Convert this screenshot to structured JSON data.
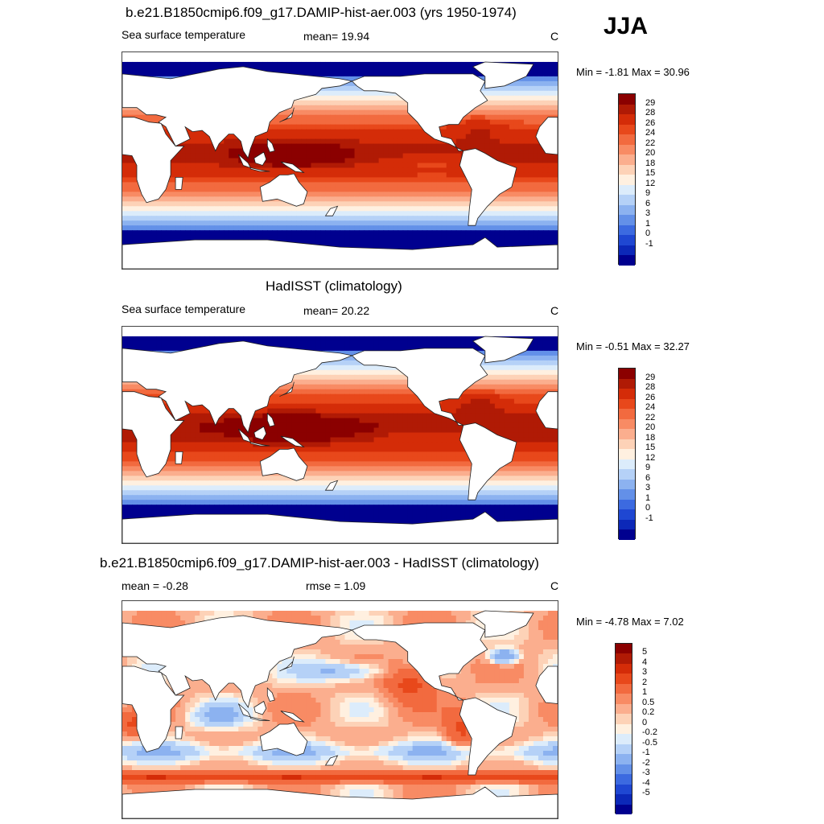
{
  "season": "JJA",
  "panels": [
    {
      "title": "b.e21.B1850cmip6.f09_g17.DAMIP-hist-aer.003 (yrs 1950-1974)",
      "left_label": "Sea surface temperature",
      "center_label": "mean=  19.94",
      "units": "C",
      "minmax": "Min =  -1.81 Max =  30.96",
      "kind": "abs"
    },
    {
      "title": "HadISST (climatology)",
      "left_label": "Sea surface temperature",
      "center_label": "mean=  20.22",
      "units": "C",
      "minmax": "Min =  -0.51 Max =  32.27",
      "kind": "abs"
    },
    {
      "title": "b.e21.B1850cmip6.f09_g17.DAMIP-hist-aer.003 - HadISST (climatology)",
      "left_label": "mean =  -0.28",
      "center_label": "rmse =   1.09",
      "units": "C",
      "minmax": "Min =  -4.78 Max =   7.02",
      "kind": "diff"
    }
  ],
  "colorbars": {
    "abs": {
      "labels": [
        "29",
        "28",
        "26",
        "24",
        "22",
        "20",
        "18",
        "15",
        "12",
        "9",
        "6",
        "3",
        "1",
        "0",
        "-1"
      ],
      "colors": [
        "#8b0000",
        "#b01a05",
        "#d42c08",
        "#e8481b",
        "#f26a3f",
        "#f88b64",
        "#fbae8e",
        "#fdd2b7",
        "#fff0e0",
        "#dcecfb",
        "#b5d1f7",
        "#8cb2f0",
        "#6390e8",
        "#3c6ae0",
        "#1f47d2",
        "#0c28b8",
        "#00008f"
      ]
    },
    "diff": {
      "labels": [
        "5",
        "4",
        "3",
        "2",
        "1",
        "0.5",
        "0.2",
        "0",
        "-0.2",
        "-0.5",
        "-1",
        "-2",
        "-3",
        "-4",
        "-5"
      ],
      "colors": [
        "#8b0000",
        "#b01a05",
        "#d42c08",
        "#e8481b",
        "#f26a3f",
        "#f88b64",
        "#fbae8e",
        "#fdd2b7",
        "#fff0e0",
        "#dcecfb",
        "#b5d1f7",
        "#8cb2f0",
        "#6390e8",
        "#3c6ae0",
        "#1f47d2",
        "#0c28b8",
        "#00008f"
      ]
    }
  }
}
